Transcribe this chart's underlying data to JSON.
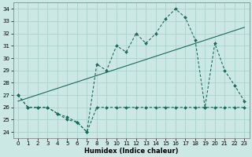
{
  "xlabel": "Humidex (Indice chaleur)",
  "bg_color": "#cce8e4",
  "grid_color": "#aad4cc",
  "line_color": "#1a6b5a",
  "xlim": [
    -0.5,
    23.5
  ],
  "ylim": [
    23.5,
    34.5
  ],
  "yticks": [
    24,
    25,
    26,
    27,
    28,
    29,
    30,
    31,
    32,
    33,
    34
  ],
  "xticks": [
    0,
    1,
    2,
    3,
    4,
    5,
    6,
    7,
    8,
    9,
    10,
    11,
    12,
    13,
    14,
    15,
    16,
    17,
    18,
    19,
    20,
    21,
    22,
    23
  ],
  "line1_x": [
    0,
    1,
    2,
    3,
    4,
    5,
    6,
    7,
    8,
    9,
    10,
    11,
    12,
    13,
    14,
    15,
    16,
    17,
    18,
    19,
    20,
    21,
    22,
    23
  ],
  "line1_y": [
    27.0,
    26.0,
    26.0,
    26.0,
    25.5,
    25.2,
    24.8,
    24.0,
    26.0,
    26.0,
    26.0,
    26.0,
    26.0,
    26.0,
    26.0,
    26.0,
    26.0,
    26.0,
    26.0,
    26.0,
    26.0,
    26.0,
    26.0,
    26.0
  ],
  "line2_x": [
    0,
    23
  ],
  "line2_y": [
    26.5,
    32.5
  ],
  "line3_x": [
    0,
    1,
    2,
    3,
    4,
    5,
    6,
    7,
    8,
    9,
    10,
    11,
    12,
    13,
    14,
    15,
    16,
    17,
    18,
    19,
    20,
    21,
    22,
    23
  ],
  "line3_y": [
    27.0,
    26.0,
    26.0,
    26.0,
    25.5,
    25.0,
    24.8,
    24.0,
    29.5,
    29.0,
    31.0,
    30.5,
    32.0,
    31.2,
    32.0,
    33.2,
    34.0,
    33.3,
    31.5,
    26.0,
    31.2,
    29.0,
    27.8,
    26.5
  ]
}
